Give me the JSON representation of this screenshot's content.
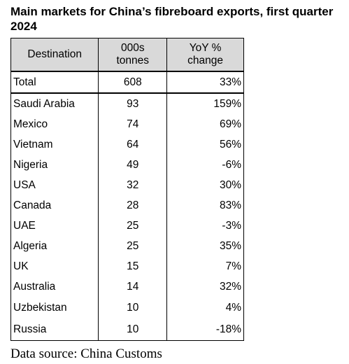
{
  "chart_data": {
    "type": "table",
    "title": "Main markets for China’s fibreboard exports, first quarter 2024",
    "columns": [
      "Destination",
      "000s tonnes",
      "YoY % change"
    ],
    "total": {
      "destination": "Total",
      "tonnes": "608",
      "yoy": "33%"
    },
    "rows": [
      {
        "destination": "Saudi Arabia",
        "tonnes": "93",
        "yoy": "159%"
      },
      {
        "destination": "Mexico",
        "tonnes": "74",
        "yoy": "69%"
      },
      {
        "destination": "Vietnam",
        "tonnes": "64",
        "yoy": "56%"
      },
      {
        "destination": "Nigeria",
        "tonnes": "49",
        "yoy": "-6%"
      },
      {
        "destination": "USA",
        "tonnes": "32",
        "yoy": "30%"
      },
      {
        "destination": "Canada",
        "tonnes": "28",
        "yoy": "83%"
      },
      {
        "destination": "UAE",
        "tonnes": "25",
        "yoy": "-3%"
      },
      {
        "destination": "Algeria",
        "tonnes": "25",
        "yoy": "35%"
      },
      {
        "destination": "UK",
        "tonnes": "15",
        "yoy": "7%"
      },
      {
        "destination": "Australia",
        "tonnes": "14",
        "yoy": "32%"
      },
      {
        "destination": "Uzbekistan",
        "tonnes": "10",
        "yoy": "4%"
      },
      {
        "destination": "Russia",
        "tonnes": "10",
        "yoy": "-18%"
      }
    ],
    "source": "Data source: China Customs"
  },
  "colors": {
    "header_background": "#d9d9d9",
    "border": "#000000",
    "text": "#000000"
  }
}
